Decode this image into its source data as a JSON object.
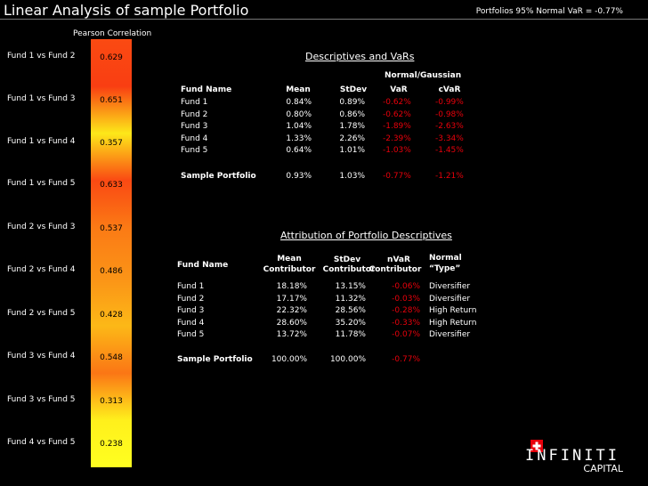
{
  "header": {
    "title": "Linear Analysis of sample Portfolio",
    "var_note": "Portfolios 95% Normal VaR = -0.77%"
  },
  "correlation": {
    "header": "Pearson Correlation",
    "pairs": [
      {
        "label": "Fund 1 vs Fund 2",
        "value": "0.629",
        "color": "#fa4a12"
      },
      {
        "label": "Fund 1 vs Fund 3",
        "value": "0.651",
        "color": "#f93e12"
      },
      {
        "label": "Fund 1 vs Fund 4",
        "value": "0.357",
        "color": "#fde819"
      },
      {
        "label": "Fund 1 vs Fund 5",
        "value": "0.633",
        "color": "#fa4913"
      },
      {
        "label": "Fund 2 vs Fund 3",
        "value": "0.537",
        "color": "#fb7a15"
      },
      {
        "label": "Fund 2 vs Fund 4",
        "value": "0.486",
        "color": "#fb9417"
      },
      {
        "label": "Fund 2 vs Fund 5",
        "value": "0.428",
        "color": "#fcb817"
      },
      {
        "label": "Fund 3 vs Fund 4",
        "value": "0.548",
        "color": "#fb7615"
      },
      {
        "label": "Fund 3 vs Fund 5",
        "value": "0.313",
        "color": "#fff01c"
      },
      {
        "label": "Fund 4 vs Fund 5",
        "value": "0.238",
        "color": "#ffff20"
      }
    ]
  },
  "descriptives": {
    "title": "Descriptives and VaRs",
    "group_header": "Normal/Gaussian",
    "col_headers": {
      "name": "Fund Name",
      "mean": "Mean",
      "stdev": "StDev",
      "var": "VaR",
      "cvar": "cVaR"
    },
    "rows": [
      {
        "name": "Fund 1",
        "mean": "0.84%",
        "stdev": "0.89%",
        "var": "-0.62%",
        "cvar": "-0.99%"
      },
      {
        "name": "Fund 2",
        "mean": "0.80%",
        "stdev": "0.86%",
        "var": "-0.62%",
        "cvar": "-0.98%"
      },
      {
        "name": "Fund 3",
        "mean": "1.04%",
        "stdev": "1.78%",
        "var": "-1.89%",
        "cvar": "-2.63%"
      },
      {
        "name": "Fund 4",
        "mean": "1.33%",
        "stdev": "2.26%",
        "var": "-2.39%",
        "cvar": "-3.34%"
      },
      {
        "name": "Fund 5",
        "mean": "0.64%",
        "stdev": "1.01%",
        "var": "-1.03%",
        "cvar": "-1.45%"
      }
    ],
    "portfolio": {
      "name": "Sample Portfolio",
      "mean": "0.93%",
      "stdev": "1.03%",
      "var": "-0.77%",
      "cvar": "-1.21%"
    }
  },
  "attribution": {
    "title": "Attribution of Portfolio Descriptives",
    "col_headers": {
      "name": "Fund Name",
      "mean_l1": "Mean",
      "mean_l2": "Contributor",
      "stdev_l1": "StDev",
      "stdev_l2": "Contributor",
      "nvar_l1": "nVaR",
      "nvar_l2": "Contributor",
      "type_l1": "Normal",
      "type_l2": "“Type”"
    },
    "rows": [
      {
        "name": "Fund 1",
        "mean": "18.18%",
        "stdev": "13.15%",
        "nvar": "-0.06%",
        "type": "Diversifier"
      },
      {
        "name": "Fund 2",
        "mean": "17.17%",
        "stdev": "11.32%",
        "nvar": "-0.03%",
        "type": "Diversifier"
      },
      {
        "name": "Fund 3",
        "mean": "22.32%",
        "stdev": "28.56%",
        "nvar": "-0.28%",
        "type": "High Return"
      },
      {
        "name": "Fund 4",
        "mean": "28.60%",
        "stdev": "35.20%",
        "nvar": "-0.33%",
        "type": "High Return"
      },
      {
        "name": "Fund 5",
        "mean": "13.72%",
        "stdev": "11.78%",
        "nvar": "-0.07%",
        "type": "Diversifier"
      }
    ],
    "portfolio": {
      "name": "Sample Portfolio",
      "mean": "100.00%",
      "stdev": "100.00%",
      "nvar": "-0.77%"
    }
  },
  "logo": {
    "brand": "INFINITI",
    "sub": "CAPITAL",
    "mark_icon": "swiss-cross-icon"
  }
}
